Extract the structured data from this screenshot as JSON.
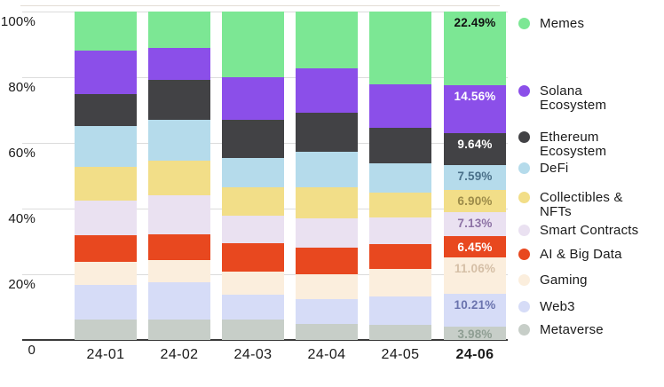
{
  "chart_data": {
    "type": "bar",
    "variant": "stacked-100-percent",
    "title": "",
    "unit": "%",
    "grid": true,
    "legend_position": "right",
    "categories": [
      "24-01",
      "24-02",
      "24-03",
      "24-04",
      "24-05",
      "24-06"
    ],
    "highlighted_category": "24-06",
    "y_ticks": [
      {
        "value": 100,
        "label": "100%"
      },
      {
        "value": 80,
        "label": "80%"
      },
      {
        "value": 60,
        "label": "60%"
      },
      {
        "value": 40,
        "label": "40%"
      },
      {
        "value": 20,
        "label": "20%"
      },
      {
        "value": 0,
        "label": "0"
      }
    ],
    "ylim": [
      0,
      100
    ],
    "series": [
      {
        "name": "Memes",
        "legend_lines": [
          "Memes"
        ],
        "color": "#7ce794",
        "values": [
          11.9,
          11.1,
          20.1,
          17.3,
          22.1,
          22.49
        ],
        "last_value_label": "22.49%",
        "label_color": "#111111"
      },
      {
        "name": "Solana Ecosystem",
        "legend_lines": [
          "Solana",
          "Ecosystem"
        ],
        "color": "#8b4fe9",
        "values": [
          13.2,
          9.7,
          12.8,
          13.4,
          13.3,
          14.56
        ],
        "last_value_label": "14.56%",
        "label_color": "#ffffff"
      },
      {
        "name": "Ethereum Ecosystem",
        "legend_lines": [
          "Ethereum",
          "Ecosystem"
        ],
        "color": "#424245",
        "values": [
          9.7,
          12.2,
          11.7,
          12.0,
          10.9,
          9.64
        ],
        "last_value_label": "9.64%",
        "label_color": "#ffffff"
      },
      {
        "name": "DeFi",
        "legend_lines": [
          "DeFi"
        ],
        "color": "#b5dbeb",
        "values": [
          12.6,
          12.5,
          8.8,
          10.7,
          8.8,
          7.59
        ],
        "last_value_label": "7.59%",
        "label_color": "#4a7089"
      },
      {
        "name": "Collectibles & NFTs",
        "legend_lines": [
          "Collectibles &",
          "NFTs"
        ],
        "color": "#f2de88",
        "values": [
          10.2,
          10.4,
          8.7,
          9.5,
          7.5,
          6.9
        ],
        "last_value_label": "6.90%",
        "label_color": "#9c8b49"
      },
      {
        "name": "Smart Contracts",
        "legend_lines": [
          "Smart Contracts"
        ],
        "color": "#eae1f1",
        "values": [
          10.6,
          11.9,
          8.5,
          9.1,
          8.3,
          7.13
        ],
        "last_value_label": "7.13%",
        "label_color": "#8d72a5"
      },
      {
        "name": "AI & Big Data",
        "legend_lines": [
          "AI & Big Data"
        ],
        "color": "#e8481f",
        "values": [
          8.1,
          8.0,
          8.7,
          8.0,
          7.5,
          6.45
        ],
        "last_value_label": "6.45%",
        "label_color": "#ffffff"
      },
      {
        "name": "Gaming",
        "legend_lines": [
          "Gaming"
        ],
        "color": "#fbeedd",
        "values": [
          7.0,
          6.7,
          6.8,
          7.5,
          8.3,
          11.06
        ],
        "last_value_label": "11.06%",
        "label_color": "#d5bfa6"
      },
      {
        "name": "Web3",
        "legend_lines": [
          "Web3"
        ],
        "color": "#d6dcf7",
        "values": [
          10.6,
          11.4,
          7.8,
          7.7,
          8.8,
          10.21
        ],
        "last_value_label": "10.21%",
        "label_color": "#6a73ae"
      },
      {
        "name": "Metaverse",
        "legend_lines": [
          "Metaverse"
        ],
        "color": "#c7cec8",
        "values": [
          6.1,
          6.1,
          6.1,
          4.8,
          4.5,
          3.98
        ],
        "last_value_label": "3.98%",
        "label_color": "#8f9e93"
      }
    ]
  },
  "colors": {
    "grid": "#dcdcdc",
    "axis": "#3a3a3a",
    "text": "#1a1a1a",
    "background": "#ffffff"
  }
}
